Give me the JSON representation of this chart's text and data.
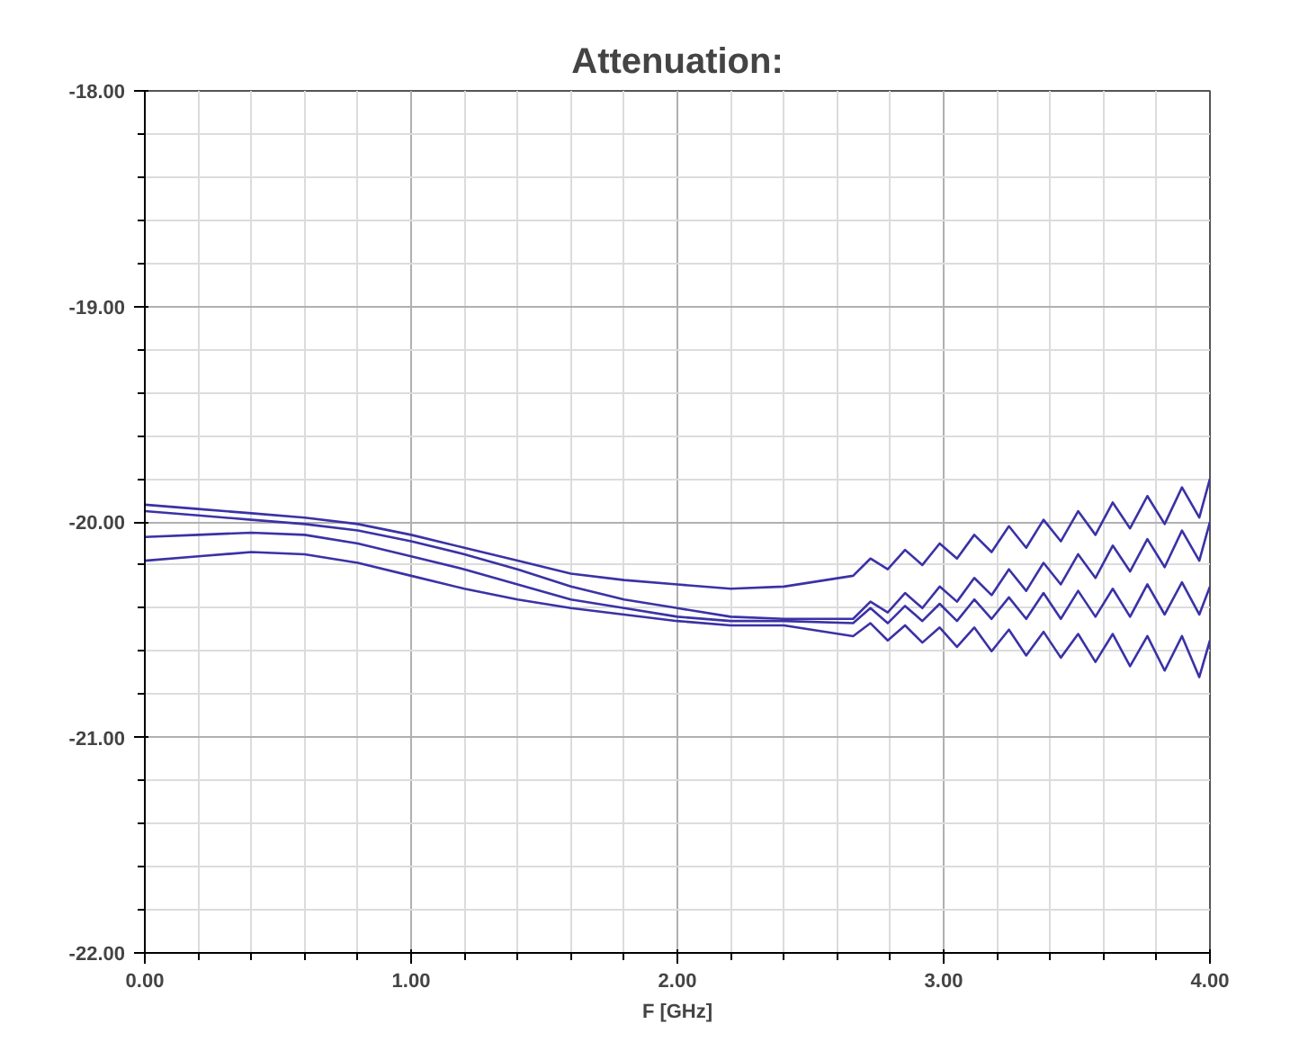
{
  "chart_data": {
    "type": "line",
    "title": "Attenuation:",
    "xlabel": "F [GHz]",
    "x": [
      0,
      0.2,
      0.4,
      0.6,
      0.8,
      1.0,
      1.2,
      1.4,
      1.6,
      1.8,
      2.0,
      2.2,
      2.4,
      2.66,
      2.725,
      2.79,
      2.855,
      2.92,
      2.985,
      3.05,
      3.115,
      3.18,
      3.245,
      3.31,
      3.375,
      3.44,
      3.505,
      3.57,
      3.635,
      3.7,
      3.765,
      3.83,
      3.895,
      3.96,
      4.0
    ],
    "series": [
      {
        "color": "#3a32a6",
        "values": [
          -19.92,
          -19.94,
          -19.96,
          -19.98,
          -20.01,
          -20.06,
          -20.12,
          -20.18,
          -20.24,
          -20.27,
          -20.29,
          -20.31,
          -20.3,
          -20.25,
          -20.17,
          -20.22,
          -20.13,
          -20.2,
          -20.1,
          -20.17,
          -20.06,
          -20.14,
          -20.02,
          -20.12,
          -19.99,
          -20.09,
          -19.95,
          -20.06,
          -19.91,
          -20.03,
          -19.88,
          -20.01,
          -19.84,
          -19.98,
          -19.8
        ]
      },
      {
        "color": "#3a32a6",
        "values": [
          -19.95,
          -19.97,
          -19.99,
          -20.01,
          -20.04,
          -20.09,
          -20.15,
          -20.22,
          -20.3,
          -20.36,
          -20.4,
          -20.44,
          -20.45,
          -20.45,
          -20.37,
          -20.42,
          -20.33,
          -20.4,
          -20.3,
          -20.37,
          -20.26,
          -20.34,
          -20.22,
          -20.32,
          -20.19,
          -20.29,
          -20.15,
          -20.26,
          -20.11,
          -20.23,
          -20.08,
          -20.21,
          -20.04,
          -20.18,
          -20.0
        ]
      },
      {
        "color": "#3a32a6",
        "values": [
          -20.07,
          -20.06,
          -20.05,
          -20.06,
          -20.1,
          -20.16,
          -20.22,
          -20.29,
          -20.36,
          -20.4,
          -20.44,
          -20.46,
          -20.46,
          -20.47,
          -20.4,
          -20.47,
          -20.39,
          -20.46,
          -20.38,
          -20.46,
          -20.36,
          -20.45,
          -20.35,
          -20.45,
          -20.33,
          -20.45,
          -20.32,
          -20.44,
          -20.31,
          -20.44,
          -20.29,
          -20.43,
          -20.28,
          -20.43,
          -20.3
        ]
      },
      {
        "color": "#3a32a6",
        "values": [
          -20.18,
          -20.16,
          -20.14,
          -20.15,
          -20.19,
          -20.25,
          -20.31,
          -20.36,
          -20.4,
          -20.43,
          -20.46,
          -20.48,
          -20.48,
          -20.53,
          -20.47,
          -20.55,
          -20.48,
          -20.56,
          -20.49,
          -20.58,
          -20.49,
          -20.6,
          -20.5,
          -20.62,
          -20.51,
          -20.63,
          -20.52,
          -20.65,
          -20.52,
          -20.67,
          -20.53,
          -20.69,
          -20.53,
          -20.72,
          -20.55
        ]
      }
    ],
    "xlim": [
      0,
      4
    ],
    "ylim": [
      -22,
      -18
    ],
    "xticks": [
      {
        "value": 0,
        "label": "0.00"
      },
      {
        "value": 1,
        "label": "1.00"
      },
      {
        "value": 2,
        "label": "2.00"
      },
      {
        "value": 3,
        "label": "3.00"
      },
      {
        "value": 4,
        "label": "4.00"
      }
    ],
    "yticks": [
      {
        "value": -22,
        "label": "-22.00"
      },
      {
        "value": -21,
        "label": "-21.00"
      },
      {
        "value": -20,
        "label": "-20.00"
      },
      {
        "value": -19,
        "label": "-19.00"
      },
      {
        "value": -18,
        "label": "-18.00"
      }
    ],
    "grid": true,
    "marker": "none",
    "line_style": "solid"
  }
}
